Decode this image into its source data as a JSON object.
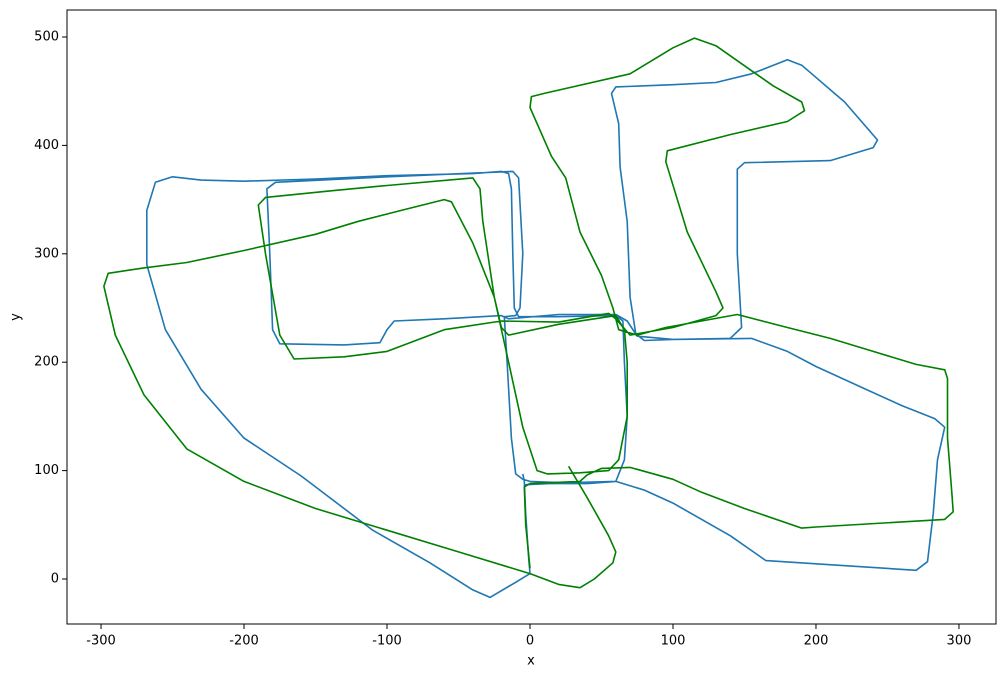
{
  "chart_data": {
    "type": "line",
    "xlabel": "x",
    "ylabel": "y",
    "xlim": [
      -323.8,
      325.9
    ],
    "ylim": [
      -41.5,
      524.9
    ],
    "xticks": [
      -300,
      -200,
      -100,
      0,
      100,
      200,
      300
    ],
    "yticks": [
      0,
      100,
      200,
      300,
      400,
      500
    ],
    "series": [
      {
        "color": "#1f77b4",
        "x": [
          -5,
          -4,
          -3,
          -1,
          0,
          -10,
          -28,
          -40,
          -70,
          -110,
          -160,
          -200,
          -230,
          -255,
          -268,
          -268,
          -262,
          -250,
          -230,
          -200,
          -150,
          -100,
          -40,
          -20,
          -15,
          -13,
          -12,
          -11,
          -8,
          20,
          60,
          65,
          66,
          68,
          66,
          60,
          40,
          10,
          -3,
          30,
          60,
          80,
          100,
          140,
          165,
          200,
          270,
          278,
          282,
          285,
          290,
          283,
          260,
          230,
          200,
          180,
          155,
          100,
          80,
          74,
          70,
          68,
          63,
          62,
          57,
          60,
          100,
          130,
          155,
          180,
          190,
          220,
          243,
          240,
          210,
          150,
          145,
          145,
          148,
          140,
          100,
          75,
          68,
          60,
          20,
          -15,
          -20,
          -60,
          -95,
          -100,
          -105,
          -130,
          -175,
          -180,
          -182,
          -184,
          -178,
          -100,
          -12,
          -8,
          -5,
          -7,
          -10,
          -18,
          -16,
          -13,
          -10,
          -5,
          0,
          20
        ],
        "values": [
          97,
          90,
          60,
          20,
          5,
          -3,
          -17,
          -10,
          15,
          45,
          95,
          130,
          175,
          230,
          290,
          340,
          366,
          371,
          368,
          367,
          369,
          372,
          374,
          376,
          374,
          360,
          300,
          250,
          242,
          242,
          243,
          238,
          200,
          150,
          110,
          90,
          88,
          88,
          87,
          89,
          90,
          82,
          70,
          40,
          17,
          14,
          8,
          16,
          60,
          110,
          140,
          148,
          160,
          178,
          196,
          210,
          222,
          221,
          220,
          226,
          260,
          330,
          380,
          420,
          448,
          454,
          456,
          458,
          466,
          479,
          474,
          440,
          405,
          398,
          386,
          384,
          378,
          300,
          232,
          222,
          221,
          224,
          238,
          244,
          244,
          240,
          243,
          240,
          238,
          230,
          218,
          216,
          217,
          230,
          300,
          360,
          366,
          371,
          376,
          370,
          300,
          250,
          243,
          242,
          200,
          130,
          97,
          92,
          90,
          89
        ]
      },
      {
        "color": "#008000",
        "x": [
          27,
          40,
          55,
          60,
          58,
          45,
          35,
          20,
          0,
          -50,
          -100,
          -150,
          -200,
          -240,
          -270,
          -290,
          -298,
          -295,
          -270,
          -240,
          -200,
          -150,
          -120,
          -90,
          -60,
          -55,
          -40,
          -25,
          -20,
          -15,
          20,
          60,
          66,
          68,
          68,
          62,
          55,
          35,
          12,
          5,
          -5,
          -15,
          -25,
          -33,
          -35,
          -40,
          -100,
          -140,
          -185,
          -190,
          -185,
          -175,
          -165,
          -130,
          -100,
          -60,
          -20,
          20,
          55,
          60,
          70,
          100,
          130,
          135,
          130,
          110,
          95,
          96,
          140,
          180,
          192,
          190,
          170,
          130,
          115,
          100,
          70,
          10,
          1,
          0,
          15,
          25,
          35,
          50,
          58,
          62,
          75,
          95,
          145,
          180,
          210,
          240,
          270,
          290,
          292,
          292,
          295,
          296,
          290,
          200,
          190,
          150,
          120,
          100,
          70,
          50,
          40,
          35,
          0,
          -4,
          -3,
          0
        ],
        "values": [
          104,
          75,
          40,
          25,
          15,
          0,
          -8,
          -5,
          5,
          25,
          45,
          65,
          90,
          120,
          170,
          225,
          270,
          282,
          287,
          292,
          303,
          318,
          330,
          340,
          350,
          348,
          310,
          260,
          232,
          225,
          235,
          243,
          230,
          200,
          150,
          110,
          100,
          98,
          97,
          100,
          140,
          200,
          260,
          330,
          360,
          370,
          363,
          358,
          352,
          345,
          300,
          225,
          203,
          205,
          210,
          230,
          238,
          237,
          245,
          240,
          225,
          232,
          243,
          250,
          265,
          320,
          385,
          395,
          410,
          422,
          432,
          440,
          455,
          492,
          499,
          490,
          466,
          448,
          445,
          435,
          390,
          370,
          320,
          280,
          250,
          230,
          225,
          232,
          244,
          232,
          222,
          210,
          198,
          193,
          185,
          130,
          80,
          62,
          55,
          48,
          47,
          65,
          80,
          92,
          103,
          102,
          96,
          90,
          88,
          85,
          50,
          10
        ]
      }
    ]
  }
}
